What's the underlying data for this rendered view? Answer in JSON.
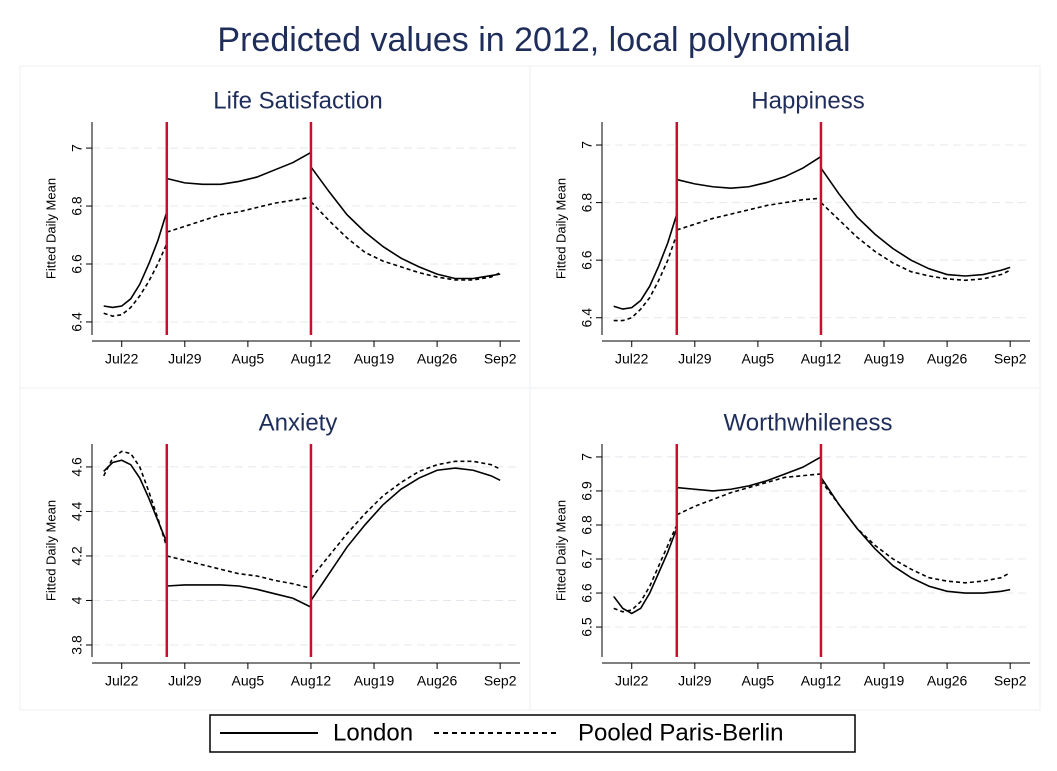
{
  "title": "Predicted values in 2012, local polynomial",
  "chart_data": [
    {
      "type": "line",
      "title": "Life Satisfaction",
      "y_label": "Fitted Daily Mean",
      "x": [
        202,
        203,
        204,
        205,
        206,
        207,
        208,
        209,
        209,
        209,
        211,
        213,
        215,
        217,
        219,
        221,
        223,
        225,
        225,
        225,
        227,
        229,
        231,
        233,
        235,
        237,
        239,
        241,
        243,
        245,
        246
      ],
      "xlim": [
        200.7,
        248.2
      ],
      "xticks": [
        {
          "value": 204,
          "label": "Jul22"
        },
        {
          "value": 211,
          "label": "Jul29"
        },
        {
          "value": 218,
          "label": "Aug5"
        },
        {
          "value": 225,
          "label": "Aug12"
        },
        {
          "value": 232,
          "label": "Aug19"
        },
        {
          "value": 239,
          "label": "Aug26"
        },
        {
          "value": 246,
          "label": "Sep2"
        }
      ],
      "ylim": [
        6.355,
        7.09
      ],
      "yticks": [
        6.4,
        6.6,
        6.8,
        7
      ],
      "grid": true,
      "vlines": [
        209,
        225
      ],
      "vline_color": "#c8102e",
      "series": [
        {
          "name": "London",
          "color": "#000000",
          "style": "solid",
          "values": [
            6.455,
            6.45,
            6.455,
            6.48,
            6.53,
            6.6,
            6.68,
            6.78,
            null,
            6.895,
            6.88,
            6.875,
            6.875,
            6.885,
            6.9,
            6.925,
            6.95,
            6.985,
            null,
            6.935,
            6.85,
            6.77,
            6.71,
            6.66,
            6.62,
            6.59,
            6.565,
            6.55,
            6.55,
            6.56,
            6.565
          ]
        },
        {
          "name": "Pooled Paris-Berlin",
          "color": "#000000",
          "style": "dashed",
          "values": [
            6.43,
            6.42,
            6.425,
            6.45,
            6.49,
            6.54,
            6.6,
            6.67,
            null,
            6.71,
            6.73,
            6.75,
            6.77,
            6.78,
            6.795,
            6.81,
            6.82,
            6.83,
            null,
            6.815,
            6.75,
            6.69,
            6.64,
            6.61,
            6.59,
            6.57,
            6.555,
            6.545,
            6.545,
            6.555,
            6.57
          ]
        }
      ]
    },
    {
      "type": "line",
      "title": "Happiness",
      "y_label": "Fitted Daily Mean",
      "x": [
        202,
        203,
        204,
        205,
        206,
        207,
        208,
        209,
        209,
        209,
        211,
        213,
        215,
        217,
        219,
        221,
        223,
        225,
        225,
        225,
        227,
        229,
        231,
        233,
        235,
        237,
        239,
        241,
        243,
        245,
        246
      ],
      "xlim": [
        200.7,
        248.2
      ],
      "xticks": [
        {
          "value": 204,
          "label": "Jul22"
        },
        {
          "value": 211,
          "label": "Jul29"
        },
        {
          "value": 218,
          "label": "Aug5"
        },
        {
          "value": 225,
          "label": "Aug12"
        },
        {
          "value": 232,
          "label": "Aug19"
        },
        {
          "value": 239,
          "label": "Aug26"
        },
        {
          "value": 246,
          "label": "Sep2"
        }
      ],
      "ylim": [
        6.34,
        7.08
      ],
      "yticks": [
        6.4,
        6.6,
        6.8,
        7
      ],
      "grid": true,
      "vlines": [
        209,
        225
      ],
      "vline_color": "#c8102e",
      "series": [
        {
          "name": "London",
          "color": "#000000",
          "style": "solid",
          "values": [
            6.44,
            6.43,
            6.435,
            6.46,
            6.51,
            6.58,
            6.66,
            6.76,
            null,
            6.88,
            6.865,
            6.855,
            6.85,
            6.855,
            6.87,
            6.89,
            6.92,
            6.96,
            null,
            6.92,
            6.83,
            6.75,
            6.69,
            6.64,
            6.6,
            6.57,
            6.55,
            6.545,
            6.55,
            6.565,
            6.575
          ]
        },
        {
          "name": "Pooled Paris-Berlin",
          "color": "#000000",
          "style": "dashed",
          "values": [
            6.39,
            6.39,
            6.4,
            6.43,
            6.47,
            6.53,
            6.6,
            6.69,
            null,
            6.705,
            6.725,
            6.745,
            6.76,
            6.775,
            6.79,
            6.8,
            6.81,
            6.815,
            null,
            6.8,
            6.74,
            6.68,
            6.63,
            6.59,
            6.56,
            6.545,
            6.535,
            6.53,
            6.535,
            6.55,
            6.565
          ]
        }
      ]
    },
    {
      "type": "line",
      "title": "Anxiety",
      "y_label": "Fitted Daily Mean",
      "x": [
        202,
        203,
        204,
        205,
        206,
        207,
        208,
        209,
        209,
        209,
        211,
        213,
        215,
        217,
        219,
        221,
        223,
        225,
        225,
        225,
        227,
        229,
        231,
        233,
        235,
        237,
        239,
        241,
        243,
        245,
        246
      ],
      "xlim": [
        200.7,
        248.2
      ],
      "xticks": [
        {
          "value": 204,
          "label": "Jul22"
        },
        {
          "value": 211,
          "label": "Jul29"
        },
        {
          "value": 218,
          "label": "Aug5"
        },
        {
          "value": 225,
          "label": "Aug12"
        },
        {
          "value": 232,
          "label": "Aug19"
        },
        {
          "value": 239,
          "label": "Aug26"
        },
        {
          "value": 246,
          "label": "Sep2"
        }
      ],
      "ylim": [
        3.746,
        4.703
      ],
      "yticks": [
        3.8,
        4,
        4.2,
        4.4,
        4.6
      ],
      "grid": true,
      "vlines": [
        209,
        225
      ],
      "vline_color": "#c8102e",
      "series": [
        {
          "name": "London",
          "color": "#000000",
          "style": "solid",
          "values": [
            4.58,
            4.62,
            4.63,
            4.61,
            4.55,
            4.46,
            4.36,
            4.26,
            null,
            4.065,
            4.07,
            4.07,
            4.07,
            4.065,
            4.05,
            4.03,
            4.01,
            3.97,
            null,
            4.0,
            4.12,
            4.24,
            4.34,
            4.43,
            4.5,
            4.55,
            4.585,
            4.595,
            4.585,
            4.56,
            4.54
          ]
        },
        {
          "name": "Pooled Paris-Berlin",
          "color": "#000000",
          "style": "dashed",
          "values": [
            4.56,
            4.64,
            4.67,
            4.66,
            4.6,
            4.49,
            4.37,
            4.24,
            null,
            4.2,
            4.18,
            4.16,
            4.14,
            4.12,
            4.11,
            4.09,
            4.075,
            4.055,
            null,
            4.1,
            4.2,
            4.3,
            4.39,
            4.47,
            4.53,
            4.58,
            4.61,
            4.625,
            4.625,
            4.61,
            4.59
          ]
        }
      ]
    },
    {
      "type": "line",
      "title": "Worthwhileness",
      "y_label": "Fitted Daily Mean",
      "x": [
        202,
        203,
        204,
        205,
        206,
        207,
        208,
        209,
        209,
        209,
        211,
        213,
        215,
        217,
        219,
        221,
        223,
        225,
        225,
        225,
        227,
        229,
        231,
        233,
        235,
        237,
        239,
        241,
        243,
        245,
        246
      ],
      "xlim": [
        200.7,
        248.2
      ],
      "xticks": [
        {
          "value": 204,
          "label": "Jul22"
        },
        {
          "value": 211,
          "label": "Jul29"
        },
        {
          "value": 218,
          "label": "Aug5"
        },
        {
          "value": 225,
          "label": "Aug12"
        },
        {
          "value": 232,
          "label": "Aug19"
        },
        {
          "value": 239,
          "label": "Aug26"
        },
        {
          "value": 246,
          "label": "Sep2"
        }
      ],
      "ylim": [
        6.412,
        7.038
      ],
      "yticks": [
        6.5,
        6.6,
        6.7,
        6.8,
        6.9,
        7
      ],
      "grid": true,
      "vlines": [
        209,
        225
      ],
      "vline_color": "#c8102e",
      "series": [
        {
          "name": "London",
          "color": "#000000",
          "style": "solid",
          "values": [
            6.59,
            6.555,
            6.54,
            6.555,
            6.6,
            6.66,
            6.72,
            6.79,
            null,
            6.91,
            6.905,
            6.9,
            6.905,
            6.915,
            6.93,
            6.95,
            6.97,
            7.0,
            null,
            6.94,
            6.86,
            6.79,
            6.73,
            6.68,
            6.645,
            6.62,
            6.605,
            6.6,
            6.6,
            6.605,
            6.61
          ]
        },
        {
          "name": "Pooled Paris-Berlin",
          "color": "#000000",
          "style": "dashed",
          "values": [
            6.555,
            6.545,
            6.55,
            6.575,
            6.62,
            6.68,
            6.74,
            6.8,
            null,
            6.83,
            6.855,
            6.875,
            6.895,
            6.91,
            6.925,
            6.94,
            6.945,
            6.95,
            null,
            6.93,
            6.86,
            6.79,
            6.74,
            6.7,
            6.67,
            6.645,
            6.635,
            6.63,
            6.635,
            6.645,
            6.66
          ]
        }
      ]
    }
  ]
}
